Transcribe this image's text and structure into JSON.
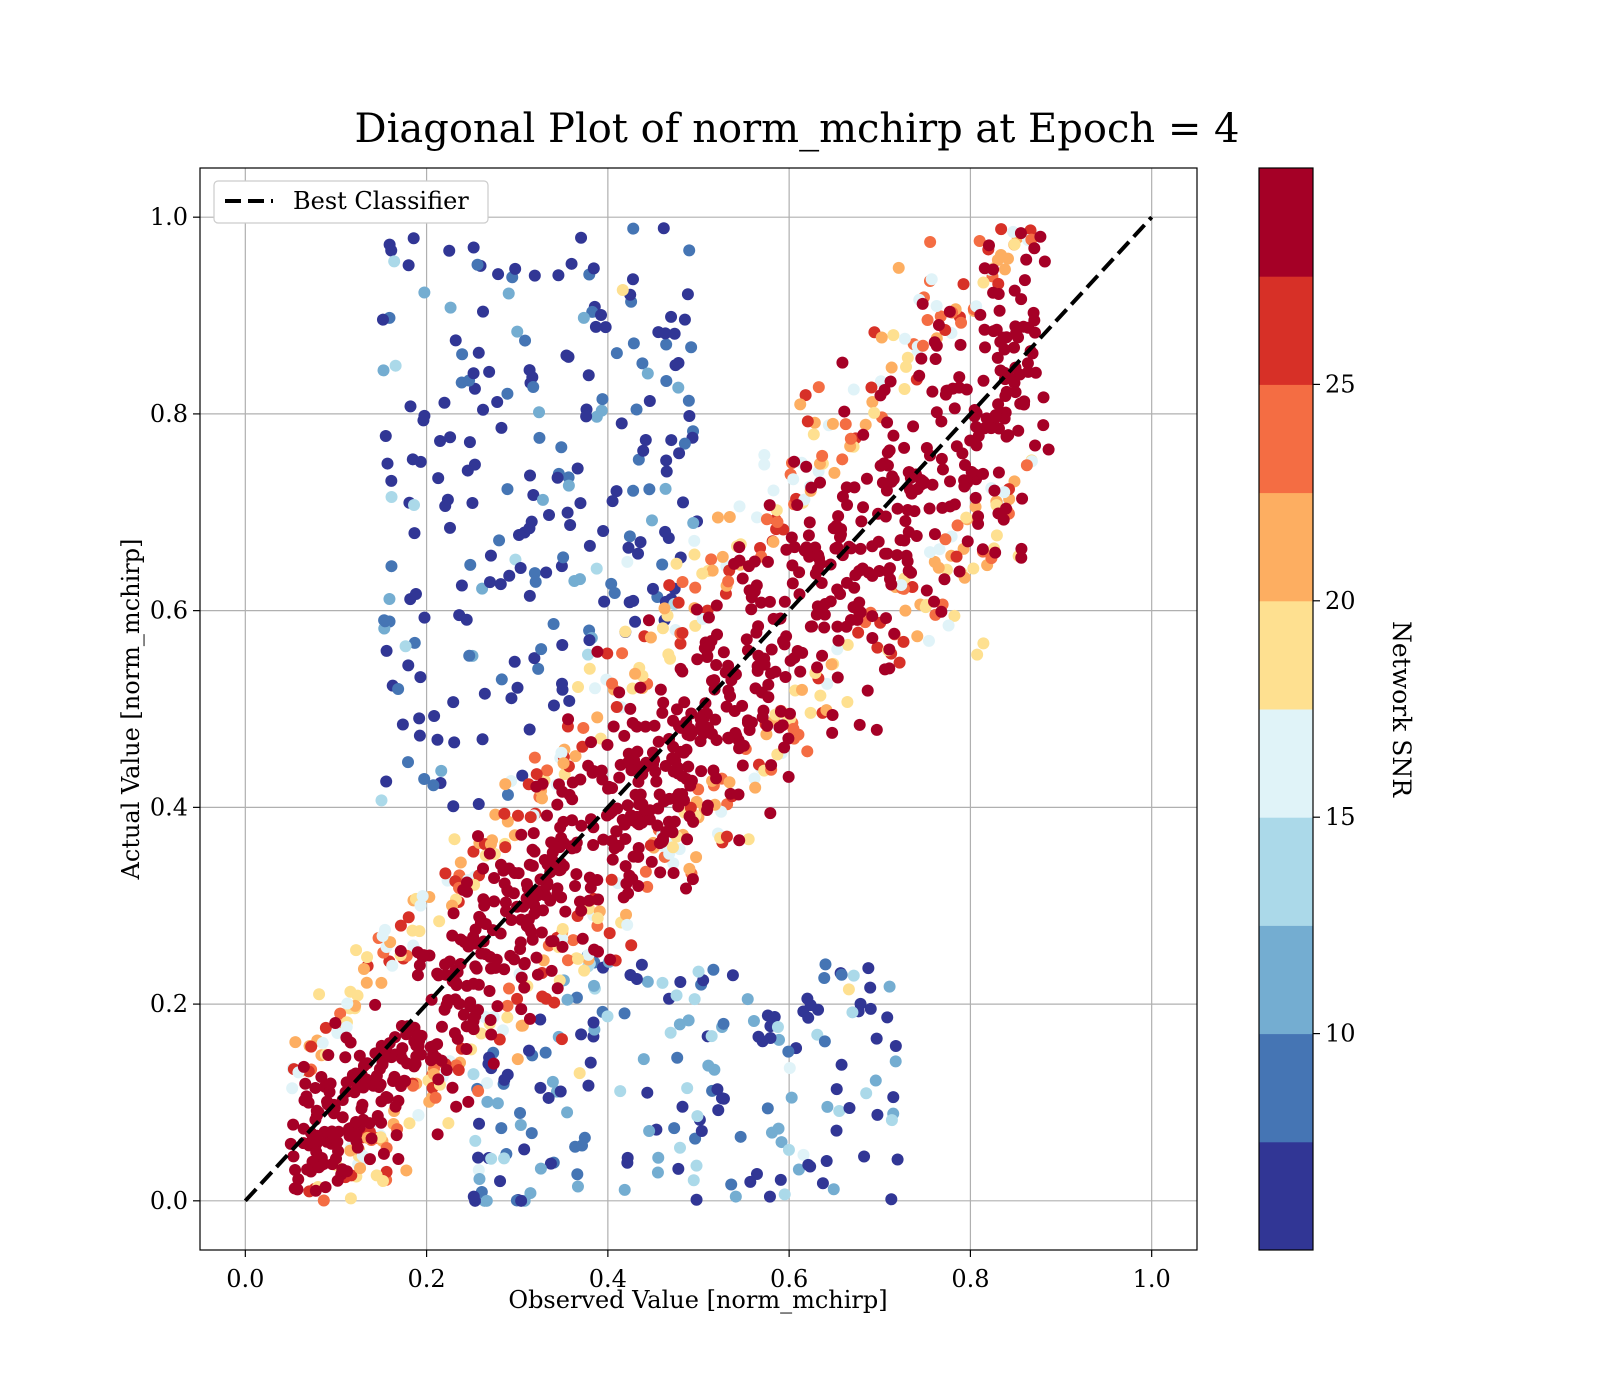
{
  "chart_data": {
    "type": "scatter",
    "title": "Diagonal Plot of norm_mchirp at Epoch = 4",
    "xlabel": "Observed Value [norm_mchirp]",
    "ylabel": "Actual Value [norm_mchirp]",
    "xlim": [
      -0.05,
      1.05
    ],
    "ylim": [
      -0.05,
      1.05
    ],
    "xticks": [
      "0.0",
      "0.2",
      "0.4",
      "0.6",
      "0.8",
      "1.0"
    ],
    "yticks": [
      "0.0",
      "0.2",
      "0.4",
      "0.6",
      "0.8",
      "1.0"
    ],
    "grid": true,
    "legend": {
      "position": "top-left",
      "entries": [
        {
          "label": "Best Classifier",
          "style": "black dashed line"
        }
      ]
    },
    "reference_line": {
      "label": "Best Classifier",
      "x": [
        0.0,
        1.0
      ],
      "y": [
        0.0,
        1.0
      ],
      "color": "#000000",
      "style": "dashed"
    },
    "colorbar": {
      "label": "Network SNR",
      "range": [
        5,
        30
      ],
      "ticks": [
        "10",
        "15",
        "20",
        "25"
      ],
      "tick_values": [
        10,
        15,
        20,
        25
      ],
      "colors": [
        "#313695",
        "#4575b4",
        "#74add1",
        "#abd9e9",
        "#e0f3f8",
        "#fee090",
        "#fdae61",
        "#f46d43",
        "#d73027",
        "#a50026"
      ]
    },
    "point_clouds": [
      {
        "description": "high SNR core",
        "snr": 29,
        "center_line": [
          [
            0.05,
            0.03
          ],
          [
            0.5,
            0.45
          ],
          [
            0.85,
            0.85
          ]
        ],
        "spread": 0.07,
        "count": 900
      },
      {
        "description": "low SNR above diagonal",
        "snr": 6,
        "x_range": [
          0.15,
          0.5
        ],
        "y_range": [
          0.4,
          0.99
        ],
        "count": 250
      },
      {
        "description": "low SNR below diagonal",
        "snr": 8,
        "x_range": [
          0.25,
          0.72
        ],
        "y_range": [
          0.0,
          0.25
        ],
        "count": 200
      }
    ]
  }
}
